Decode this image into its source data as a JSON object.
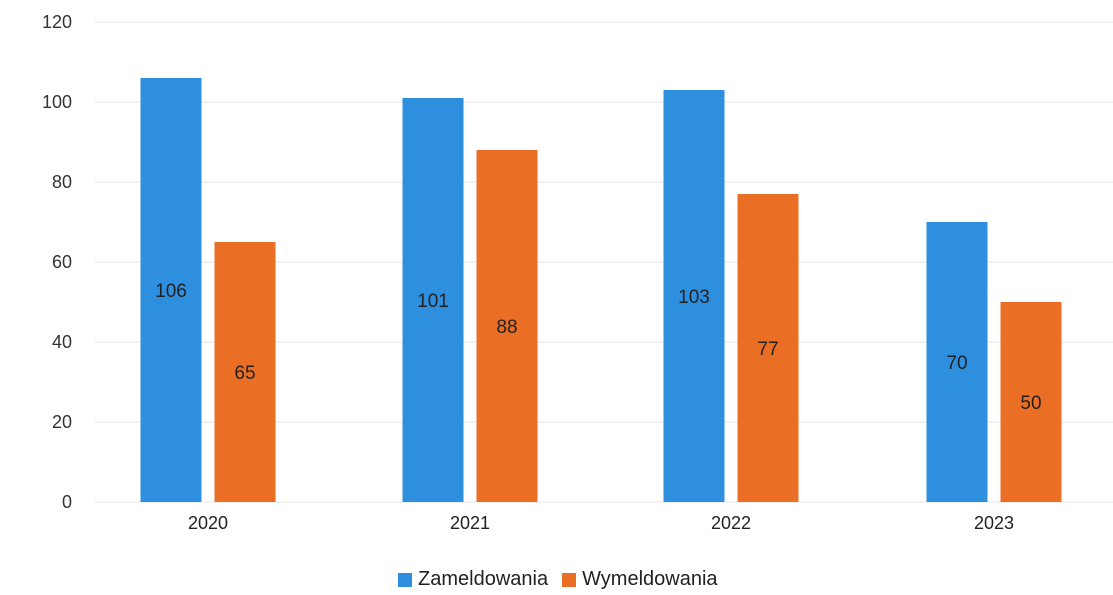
{
  "chart_data": {
    "type": "bar",
    "categories": [
      "2020",
      "2021",
      "2022",
      "2023"
    ],
    "series": [
      {
        "name": "Zameldowania",
        "values": [
          106,
          101,
          103,
          70
        ],
        "color": "#2e8fde"
      },
      {
        "name": "Wymeldowania",
        "values": [
          65,
          88,
          77,
          50
        ],
        "color": "#ea6f25"
      }
    ],
    "yticks": [
      0,
      20,
      40,
      60,
      80,
      100,
      120
    ],
    "ylim": [
      0,
      120
    ],
    "grid": true,
    "legend_position": "bottom",
    "data_labels": true
  }
}
